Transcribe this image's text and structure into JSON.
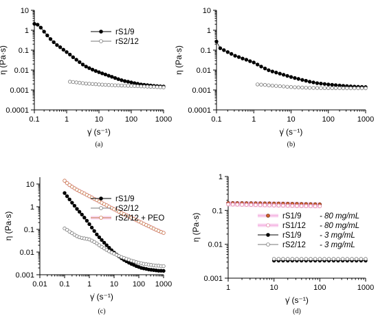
{
  "colors": {
    "black": "#000000",
    "open_gray": "#777777",
    "peo_orange": "#c87a4a",
    "glow_pink": "#f2a6dd"
  },
  "chart_data": [
    {
      "type": "scatter",
      "panel_label": "(a)",
      "xlabel": "γ̇ (s⁻¹)",
      "ylabel": "η (Pa·s)",
      "xscale": "log",
      "yscale": "log",
      "xlim": [
        0.1,
        1000
      ],
      "ylim": [
        0.0001,
        10
      ],
      "xticks": [
        "0.1",
        "1",
        "10",
        "100",
        "1000"
      ],
      "yticks": [
        "0.0001",
        "0.001",
        "0.01",
        "0.1",
        "1",
        "10"
      ],
      "legend_position": "top-right",
      "series": [
        {
          "name": "rS1/9",
          "marker": "filled",
          "x": [
            0.1,
            0.126,
            0.158,
            0.2,
            0.251,
            0.316,
            0.398,
            0.501,
            0.631,
            0.794,
            1,
            1.26,
            1.58,
            2,
            2.51,
            3.16,
            3.98,
            5.01,
            6.31,
            7.94,
            10,
            12.6,
            15.8,
            20,
            25.1,
            31.6,
            39.8,
            50.1,
            63.1,
            79.4,
            100,
            126,
            158,
            200,
            251,
            316,
            398,
            501,
            631,
            794,
            1000
          ],
          "y": [
            2.1,
            1.9,
            1.35,
            0.85,
            0.55,
            0.36,
            0.25,
            0.18,
            0.14,
            0.105,
            0.08,
            0.06,
            0.044,
            0.033,
            0.025,
            0.019,
            0.015,
            0.0125,
            0.0105,
            0.009,
            0.0078,
            0.0068,
            0.006,
            0.0052,
            0.0046,
            0.004,
            0.0035,
            0.0031,
            0.0028,
            0.0026,
            0.0024,
            0.0022,
            0.00205,
            0.0019,
            0.00182,
            0.00175,
            0.00168,
            0.00162,
            0.00157,
            0.00153,
            0.0015
          ]
        },
        {
          "name": "rS2/12",
          "marker": "open",
          "x": [
            1.26,
            1.58,
            2,
            2.51,
            3.16,
            3.98,
            5.01,
            6.31,
            7.94,
            10,
            12.6,
            15.8,
            20,
            25.1,
            31.6,
            39.8,
            50.1,
            63.1,
            79.4,
            100,
            126,
            158,
            200,
            251,
            316,
            398,
            501,
            631,
            794,
            1000
          ],
          "y": [
            0.0026,
            0.0025,
            0.0024,
            0.0023,
            0.0022,
            0.0021,
            0.00205,
            0.002,
            0.00195,
            0.0019,
            0.00186,
            0.00182,
            0.00178,
            0.00175,
            0.00172,
            0.0017,
            0.00167,
            0.00165,
            0.00162,
            0.0016,
            0.00158,
            0.00155,
            0.00152,
            0.0015,
            0.00148,
            0.00145,
            0.00143,
            0.0014,
            0.00138,
            0.00135
          ]
        }
      ]
    },
    {
      "type": "scatter",
      "panel_label": "(b)",
      "xlabel": "γ̇ (s⁻¹)",
      "ylabel": "η (Pa·s)",
      "xscale": "log",
      "yscale": "log",
      "xlim": [
        0.1,
        1000
      ],
      "ylim": [
        0.0001,
        10
      ],
      "xticks": [
        "0.1",
        "1",
        "10",
        "100",
        "1000"
      ],
      "yticks": [
        "0.0001",
        "0.001",
        "0.01",
        "0.1",
        "1",
        "10"
      ],
      "series": [
        {
          "marker": "filled",
          "x": [
            0.1,
            0.126,
            0.158,
            0.2,
            0.251,
            0.316,
            0.398,
            0.501,
            0.631,
            0.794,
            1,
            1.26,
            1.58,
            2,
            2.51,
            3.16,
            3.98,
            5.01,
            6.31,
            7.94,
            10,
            12.6,
            15.8,
            20,
            25.1,
            31.6,
            39.8,
            50.1,
            63.1,
            79.4,
            100,
            126,
            158,
            200,
            251,
            316,
            398,
            501,
            631,
            794,
            1000
          ],
          "y": [
            0.27,
            0.125,
            0.1,
            0.08,
            0.065,
            0.052,
            0.045,
            0.038,
            0.033,
            0.028,
            0.024,
            0.019,
            0.015,
            0.012,
            0.0098,
            0.0085,
            0.0075,
            0.0066,
            0.0058,
            0.0051,
            0.0045,
            0.004,
            0.0036,
            0.0032,
            0.0029,
            0.0026,
            0.0024,
            0.0022,
            0.0021,
            0.002,
            0.0019,
            0.00182,
            0.00175,
            0.00168,
            0.00162,
            0.00157,
            0.00152,
            0.00148,
            0.00145,
            0.00142,
            0.0014
          ]
        },
        {
          "marker": "open",
          "x": [
            1.26,
            1.58,
            2,
            2.51,
            3.16,
            3.98,
            5.01,
            6.31,
            7.94,
            10,
            12.6,
            15.8,
            20,
            25.1,
            31.6,
            39.8,
            50.1,
            63.1,
            79.4,
            100,
            126,
            158,
            200,
            251,
            316,
            398,
            501,
            631,
            794,
            1000
          ],
          "y": [
            0.0019,
            0.00185,
            0.0018,
            0.00172,
            0.00165,
            0.0016,
            0.00155,
            0.0015,
            0.00145,
            0.0014,
            0.00137,
            0.00135,
            0.00132,
            0.0013,
            0.00128,
            0.00127,
            0.00126,
            0.00125,
            0.00124,
            0.00124,
            0.00123,
            0.00123,
            0.00123,
            0.00122,
            0.00122,
            0.00122,
            0.00122,
            0.00122,
            0.00122,
            0.00122
          ]
        }
      ]
    },
    {
      "type": "scatter",
      "panel_label": "(c)",
      "xlabel": "γ̇ (s⁻¹)",
      "ylabel": "η (Pa·s)",
      "xscale": "log",
      "yscale": "log",
      "xlim": [
        0.01,
        1000
      ],
      "ylim": [
        0.001,
        20
      ],
      "xticks": [
        "0.01",
        "0.1",
        "1",
        "10",
        "100",
        "1000"
      ],
      "yticks": [
        "0.001",
        "0.01",
        "0.1",
        "1",
        "10"
      ],
      "legend_position": "top-right",
      "series": [
        {
          "name": "rS1/9",
          "marker": "filled",
          "x": [
            0.1,
            0.126,
            0.158,
            0.2,
            0.251,
            0.316,
            0.398,
            0.501,
            0.631,
            0.794,
            1,
            1.26,
            1.58,
            2,
            2.51,
            3.16,
            3.98,
            5.01,
            6.31,
            7.94,
            10,
            12.6,
            15.8,
            20,
            25.1,
            31.6,
            39.8,
            50.1,
            63.1,
            79.4,
            100,
            126,
            158,
            200,
            251,
            316,
            398,
            501,
            631,
            794,
            1000
          ],
          "y": [
            4.0,
            2.9,
            2.1,
            1.5,
            1.1,
            0.8,
            0.6,
            0.45,
            0.33,
            0.24,
            0.17,
            0.12,
            0.085,
            0.06,
            0.045,
            0.034,
            0.026,
            0.02,
            0.0155,
            0.012,
            0.0095,
            0.0078,
            0.0064,
            0.0053,
            0.0045,
            0.0039,
            0.0034,
            0.003,
            0.0027,
            0.0024,
            0.0022,
            0.002,
            0.0019,
            0.0018,
            0.0017,
            0.00165,
            0.0016,
            0.00155,
            0.0015,
            0.0015,
            0.00148
          ]
        },
        {
          "name": "rS2/12",
          "marker": "open",
          "x": [
            0.1,
            0.126,
            0.158,
            0.2,
            0.251,
            0.316,
            0.398,
            0.501,
            0.631,
            0.794,
            1,
            1.26,
            1.58,
            2,
            2.51,
            3.16,
            3.98,
            5.01,
            6.31,
            7.94,
            10,
            12.6,
            15.8,
            20,
            25.1,
            31.6,
            39.8,
            50.1,
            63.1,
            79.4,
            100,
            126,
            158,
            200,
            251,
            316,
            398,
            501,
            631,
            794,
            1000
          ],
          "y": [
            0.11,
            0.095,
            0.08,
            0.068,
            0.058,
            0.05,
            0.045,
            0.042,
            0.04,
            0.038,
            0.036,
            0.032,
            0.028,
            0.024,
            0.02,
            0.017,
            0.0145,
            0.0125,
            0.0108,
            0.0095,
            0.0085,
            0.0075,
            0.0067,
            0.006,
            0.0055,
            0.005,
            0.0046,
            0.0042,
            0.0039,
            0.0036,
            0.0034,
            0.0032,
            0.003,
            0.0029,
            0.0028,
            0.0027,
            0.0026,
            0.0025,
            0.0025,
            0.0024,
            0.0024
          ]
        },
        {
          "name": "rS2/12 + PEO",
          "marker": "open",
          "x": [
            0.1,
            0.126,
            0.158,
            0.2,
            0.251,
            0.316,
            0.398,
            0.501,
            0.631,
            0.794,
            1,
            1.26,
            1.58,
            2,
            2.51,
            3.16,
            3.98,
            5.01,
            6.31,
            7.94,
            10,
            12.6,
            15.8,
            20,
            25.1,
            31.6,
            39.8,
            50.1,
            63.1,
            79.4,
            100,
            126,
            158,
            200,
            251,
            316,
            398,
            501,
            631,
            794,
            1000
          ],
          "y": [
            14.0,
            11.0,
            9.0,
            7.6,
            6.5,
            5.6,
            4.9,
            4.3,
            3.8,
            3.3,
            2.9,
            2.55,
            2.2,
            1.95,
            1.7,
            1.5,
            1.3,
            1.15,
            1.0,
            0.88,
            0.77,
            0.68,
            0.6,
            0.53,
            0.47,
            0.42,
            0.37,
            0.33,
            0.29,
            0.255,
            0.225,
            0.2,
            0.175,
            0.155,
            0.138,
            0.122,
            0.108,
            0.096,
            0.086,
            0.077,
            0.07
          ]
        }
      ]
    },
    {
      "type": "scatter",
      "panel_label": "(d)",
      "xlabel": "γ̇ (s⁻¹)",
      "ylabel": "η (Pa·s)",
      "xscale": "log",
      "yscale": "log",
      "xlim": [
        1,
        1000
      ],
      "ylim": [
        0.001,
        1
      ],
      "xticks": [
        "1",
        "10",
        "100",
        "1000"
      ],
      "yticks": [
        "0.001",
        "0.01",
        "0.1",
        "1"
      ],
      "legend_position": "center",
      "series": [
        {
          "name": "rS1/9",
          "conc": "- 80 mg/mL",
          "marker": "filled-orange",
          "x": [
            1,
            1.26,
            1.58,
            2,
            2.51,
            3.16,
            3.98,
            5.01,
            6.31,
            7.94,
            10,
            12.6,
            15.8,
            20,
            25.1,
            31.6,
            39.8,
            50.1,
            63.1,
            79.4,
            100
          ],
          "y": [
            0.165,
            0.165,
            0.164,
            0.164,
            0.163,
            0.163,
            0.162,
            0.162,
            0.161,
            0.161,
            0.16,
            0.16,
            0.159,
            0.158,
            0.157,
            0.156,
            0.155,
            0.154,
            0.153,
            0.152,
            0.151
          ]
        },
        {
          "name": "rS1/12",
          "conc": "- 80 mg/mL",
          "marker": "open-pink",
          "x": [
            1,
            1.26,
            1.58,
            2,
            2.51,
            3.16,
            3.98,
            5.01,
            6.31,
            7.94,
            10,
            12.6,
            15.8,
            20,
            25.1,
            31.6,
            39.8,
            50.1,
            63.1,
            79.4,
            100
          ],
          "y": [
            0.15,
            0.149,
            0.148,
            0.147,
            0.146,
            0.145,
            0.144,
            0.143,
            0.142,
            0.141,
            0.14,
            0.139,
            0.138,
            0.137,
            0.136,
            0.135,
            0.135,
            0.134,
            0.134,
            0.133,
            0.133
          ]
        },
        {
          "name": "rS1/9",
          "conc": "- 3 mg/mL",
          "marker": "filled",
          "x": [
            10,
            12.6,
            15.8,
            20,
            25.1,
            31.6,
            39.8,
            50.1,
            63.1,
            79.4,
            100,
            126,
            158,
            200,
            251,
            316,
            398,
            501,
            631,
            794,
            1000
          ],
          "y": [
            0.0033,
            0.0033,
            0.0033,
            0.0033,
            0.0033,
            0.0033,
            0.0033,
            0.0033,
            0.0033,
            0.0033,
            0.0033,
            0.0033,
            0.0033,
            0.0033,
            0.0033,
            0.0033,
            0.0033,
            0.0033,
            0.0033,
            0.0033,
            0.0033
          ]
        },
        {
          "name": "rS2/12",
          "conc": "- 3 mg/mL",
          "marker": "open",
          "x": [
            10,
            12.6,
            15.8,
            20,
            25.1,
            31.6,
            39.8,
            50.1,
            63.1,
            79.4,
            100,
            126,
            158,
            200,
            251,
            316,
            398,
            501,
            631,
            794,
            1000
          ],
          "y": [
            0.0037,
            0.0037,
            0.0037,
            0.0037,
            0.0037,
            0.0037,
            0.0037,
            0.0037,
            0.0037,
            0.0037,
            0.0037,
            0.0037,
            0.0037,
            0.0037,
            0.0037,
            0.0037,
            0.0037,
            0.0037,
            0.0037,
            0.0037,
            0.0037
          ]
        }
      ]
    }
  ]
}
